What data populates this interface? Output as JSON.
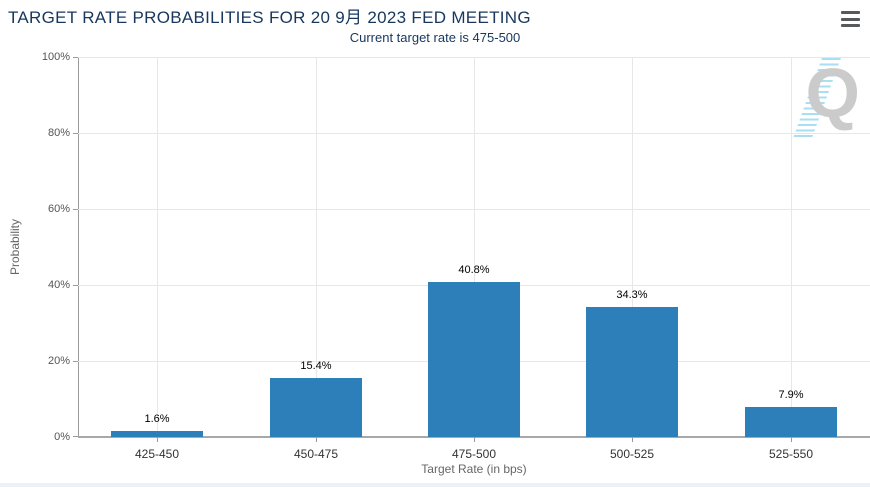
{
  "header": {
    "title": "TARGET RATE PROBABILITIES FOR 20 9月 2023 FED MEETING",
    "subtitle": "Current target rate is 475-500"
  },
  "menu": {
    "icon": "hamburger-menu-icon"
  },
  "watermark": {
    "letter": "Q"
  },
  "colors": {
    "bar": "#2c7fb8",
    "heading_text": "#17375e",
    "value_label_text": "#000000",
    "axis_tick_text": "#555555",
    "category_text": "#333333",
    "axis_title_text": "#666666",
    "gridline": "#e7e7e7",
    "axis_line": "#9a9a9a",
    "watermark_letter": "#cbcbcb",
    "watermark_swoosh": "#aadef2"
  },
  "chart_data": {
    "type": "bar",
    "title": "TARGET RATE PROBABILITIES FOR 20 9月 2023 FED MEETING",
    "subtitle": "Current target rate is 475-500",
    "categories": [
      "425-450",
      "450-475",
      "475-500",
      "500-525",
      "525-550"
    ],
    "values": [
      1.6,
      15.4,
      40.8,
      34.3,
      7.9
    ],
    "value_labels": [
      "1.6%",
      "15.4%",
      "40.8%",
      "34.3%",
      "7.9%"
    ],
    "xlabel": "Target Rate (in bps)",
    "ylabel": "Probability",
    "ylim": [
      0,
      100
    ],
    "ytick_labels": [
      "0%",
      "20%",
      "40%",
      "60%",
      "80%",
      "100%"
    ],
    "grid": true,
    "legend": false
  }
}
